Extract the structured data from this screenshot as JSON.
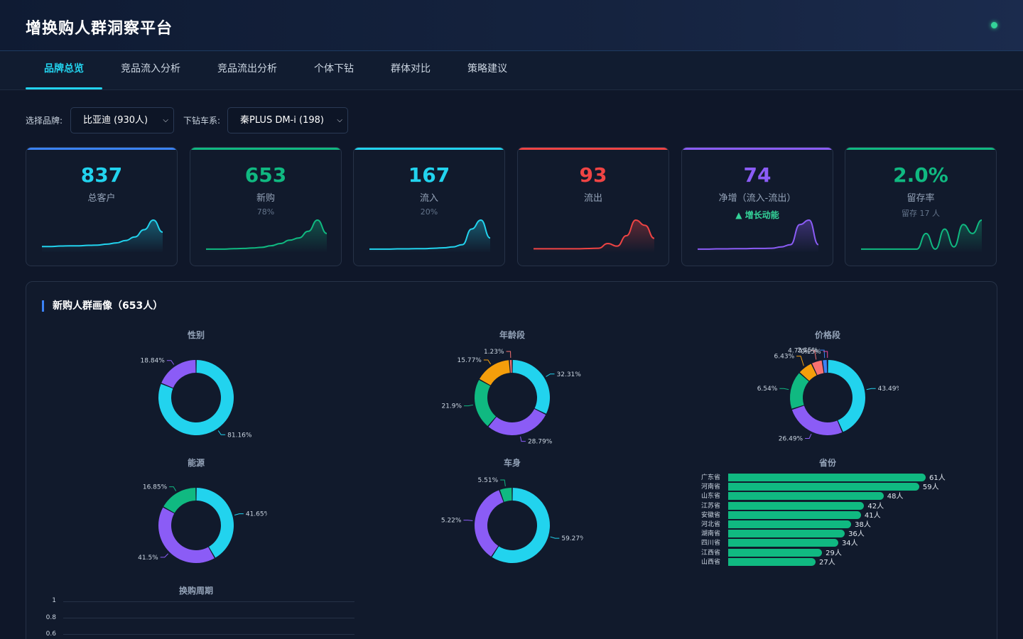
{
  "app": {
    "title": "增换购人群洞察平台"
  },
  "tabs": [
    "品牌总览",
    "竞品流入分析",
    "竞品流出分析",
    "个体下钻",
    "群体对比",
    "策略建议"
  ],
  "filters": {
    "brand_label": "选择品牌:",
    "brand_value": "比亚迪 (930人)",
    "series_label": "下钻车系:",
    "series_value": "秦PLUS DM-i (198)"
  },
  "kpis": [
    {
      "value": "837",
      "label": "总客户",
      "sub": "",
      "color": "#22d3ee",
      "bar": "#3b82f6",
      "spark": [
        2,
        2,
        2.2,
        2.3,
        2.3,
        2.5,
        2.6,
        3,
        3.5,
        4.5,
        6,
        9,
        13,
        8
      ]
    },
    {
      "value": "653",
      "label": "新购",
      "sub": "78%",
      "color": "#10b981",
      "bar": "#10b981",
      "spark": [
        1,
        1,
        1,
        1.2,
        1.3,
        1.5,
        1.8,
        2.5,
        3.5,
        5,
        6,
        9,
        14,
        8
      ]
    },
    {
      "value": "167",
      "label": "流入",
      "sub": "20%",
      "color": "#22d3ee",
      "bar": "#22d3ee",
      "spark": [
        1,
        1,
        1,
        1.1,
        1.1,
        1.2,
        1.2,
        1.4,
        1.6,
        2,
        3,
        10,
        14,
        6
      ]
    },
    {
      "value": "93",
      "label": "流出",
      "sub": "",
      "color": "#ef4444",
      "bar": "#ef4444",
      "spark": [
        1,
        1,
        1,
        1,
        1,
        1,
        1.1,
        1.2,
        3,
        2,
        6,
        12,
        10,
        5
      ]
    },
    {
      "value": "74",
      "label": "净增（流入-流出）",
      "sub": "▲ 增长动能",
      "color": "#8b5cf6",
      "bar": "#8b5cf6",
      "spark": [
        1,
        1,
        1.1,
        1.1,
        1.2,
        1.2,
        1.3,
        1.3,
        1.4,
        2,
        3,
        12,
        14,
        3
      ]
    },
    {
      "value": "2.0%",
      "label": "留存率",
      "sub": "留存 17 人",
      "color": "#10b981",
      "bar": "#10b981",
      "spark": [
        1,
        1,
        1,
        1,
        1,
        1,
        1,
        8,
        1,
        10,
        2,
        12,
        8,
        14
      ]
    }
  ],
  "panel": {
    "title": "新购人群画像（653人）"
  },
  "charts": {
    "gender": {
      "title": "性别",
      "slices": [
        {
          "value": 81.16,
          "label": "81.16%",
          "color": "#22d3ee"
        },
        {
          "value": 18.84,
          "label": "18.84%",
          "color": "#8b5cf6"
        }
      ]
    },
    "age": {
      "title": "年龄段",
      "slices": [
        {
          "value": 32.31,
          "label": "32.31%",
          "color": "#22d3ee"
        },
        {
          "value": 28.79,
          "label": "28.79%",
          "color": "#8b5cf6"
        },
        {
          "value": 21.9,
          "label": "21.9%",
          "color": "#10b981"
        },
        {
          "value": 15.77,
          "label": "15.77%",
          "color": "#f59e0b"
        },
        {
          "value": 1.23,
          "label": "1.23%",
          "color": "#f87171"
        }
      ]
    },
    "price": {
      "title": "价格段",
      "slices": [
        {
          "value": 43.49,
          "label": "43.49%",
          "color": "#22d3ee"
        },
        {
          "value": 26.49,
          "label": "26.49%",
          "color": "#8b5cf6"
        },
        {
          "value": 16.54,
          "label": "16.54%",
          "color": "#10b981"
        },
        {
          "value": 6.43,
          "label": "6.43%",
          "color": "#f59e0b"
        },
        {
          "value": 4.75,
          "label": "4.75%",
          "color": "#f87171"
        },
        {
          "value": 2.15,
          "label": "2.15%",
          "color": "#3b82f6"
        },
        {
          "value": 0.15,
          "label": "0.15%",
          "color": "#ec4899"
        }
      ]
    },
    "energy": {
      "title": "能源",
      "slices": [
        {
          "value": 41.65,
          "label": "41.65%",
          "color": "#22d3ee"
        },
        {
          "value": 41.5,
          "label": "41.5%",
          "color": "#8b5cf6"
        },
        {
          "value": 16.85,
          "label": "16.85%",
          "color": "#10b981"
        }
      ]
    },
    "body": {
      "title": "车身",
      "slices": [
        {
          "value": 59.27,
          "label": "59.27%",
          "color": "#22d3ee"
        },
        {
          "value": 35.22,
          "label": "35.22%",
          "color": "#8b5cf6"
        },
        {
          "value": 5.51,
          "label": "5.51%",
          "color": "#10b981"
        }
      ]
    },
    "province": {
      "title": "省份",
      "max": 61,
      "rows": [
        {
          "name": "广东省",
          "value": 61,
          "label": "61人"
        },
        {
          "name": "河南省",
          "value": 59,
          "label": "59人"
        },
        {
          "name": "山东省",
          "value": 48,
          "label": "48人"
        },
        {
          "name": "江苏省",
          "value": 42,
          "label": "42人"
        },
        {
          "name": "安徽省",
          "value": 41,
          "label": "41人"
        },
        {
          "name": "河北省",
          "value": 38,
          "label": "38人"
        },
        {
          "name": "湖南省",
          "value": 36,
          "label": "36人"
        },
        {
          "name": "四川省",
          "value": 34,
          "label": "34人"
        },
        {
          "name": "江西省",
          "value": 29,
          "label": "29人"
        },
        {
          "name": "山西省",
          "value": 27,
          "label": "27人"
        }
      ]
    },
    "cycle": {
      "title": "换购周期",
      "ticks": [
        "1",
        "0.8",
        "0.6"
      ]
    }
  }
}
